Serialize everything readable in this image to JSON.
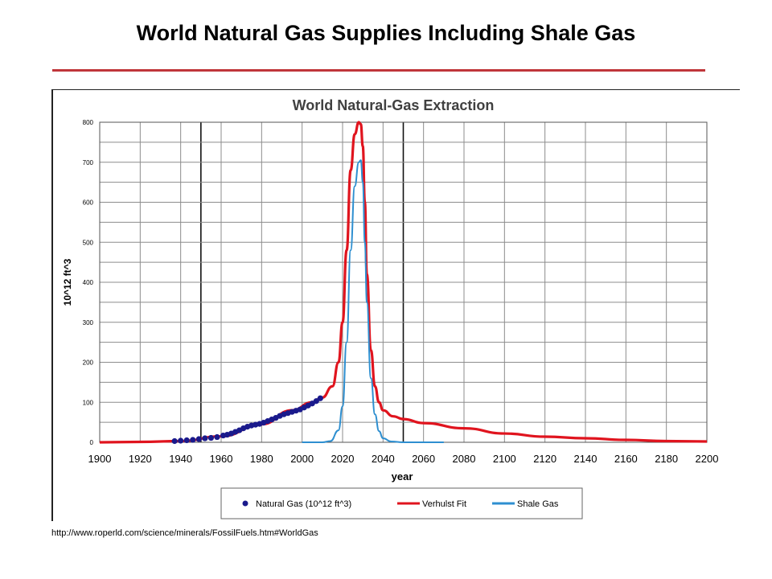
{
  "slide": {
    "title": "World Natural Gas Supplies Including Shale Gas",
    "source_url": "http://www.roperld.com/science/minerals/FossilFuels.htm#WorldGas"
  },
  "colors": {
    "title_rule": "#c0363a",
    "natural_gas": "#1a1a8c",
    "verhulst": "#e0141e",
    "shale": "#2e8fd0",
    "grid": "#8c8c8c",
    "grid_major": "#111111"
  },
  "chart_data": {
    "type": "line",
    "title": "World Natural-Gas Extraction",
    "xlabel": "year",
    "ylabel": "10^12 ft^3",
    "xlim": [
      1900,
      2200
    ],
    "ylim": [
      0,
      800
    ],
    "x_ticks": [
      "1900",
      "1920",
      "1940",
      "1960",
      "1980",
      "2000",
      "2020",
      "2040",
      "2060",
      "2080",
      "2100",
      "2120",
      "2140",
      "2160",
      "2180",
      "2200"
    ],
    "y_ticks": [
      "0",
      "100",
      "200",
      "300",
      "400",
      "500",
      "600",
      "700",
      "800"
    ],
    "grid": true,
    "legend_position": "bottom",
    "legend": [
      "Natural Gas (10^12 ft^3)",
      "Verhulst Fit",
      "Shale Gas"
    ],
    "series": [
      {
        "name": "Natural Gas (10^12 ft^3)",
        "kind": "scatter",
        "color": "#1a1a8c",
        "x": [
          1937,
          1940,
          1943,
          1946,
          1949,
          1952,
          1955,
          1958,
          1961,
          1963,
          1965,
          1967,
          1969,
          1971,
          1973,
          1975,
          1977,
          1979,
          1981,
          1983,
          1985,
          1987,
          1989,
          1991,
          1993,
          1995,
          1997,
          1999,
          2001,
          2003,
          2005,
          2007,
          2009
        ],
        "y": [
          3,
          4,
          5,
          6,
          8,
          10,
          11,
          13,
          17,
          19,
          22,
          26,
          30,
          35,
          39,
          42,
          44,
          46,
          49,
          53,
          57,
          61,
          66,
          70,
          73,
          76,
          79,
          82,
          87,
          92,
          97,
          103,
          110
        ]
      },
      {
        "name": "Verhulst Fit",
        "kind": "line",
        "color": "#e0141e",
        "x": [
          1900,
          1920,
          1940,
          1960,
          1980,
          1995,
          2005,
          2010,
          2015,
          2018,
          2020,
          2022,
          2024,
          2026,
          2028,
          2029,
          2030,
          2031,
          2032,
          2034,
          2036,
          2038,
          2040,
          2045,
          2050,
          2060,
          2080,
          2100,
          2120,
          2140,
          2160,
          2180,
          2200
        ],
        "y": [
          0,
          1,
          3,
          15,
          45,
          80,
          100,
          112,
          140,
          200,
          300,
          480,
          680,
          770,
          800,
          795,
          740,
          600,
          420,
          230,
          140,
          100,
          80,
          65,
          58,
          48,
          35,
          22,
          14,
          10,
          6,
          3,
          2
        ]
      },
      {
        "name": "Shale Gas",
        "kind": "line",
        "color": "#2e8fd0",
        "x": [
          2000,
          2010,
          2014,
          2018,
          2020,
          2022,
          2024,
          2026,
          2028,
          2029,
          2030,
          2031,
          2032,
          2034,
          2036,
          2038,
          2040,
          2044,
          2050,
          2070
        ],
        "y": [
          0,
          0,
          3,
          30,
          90,
          250,
          480,
          640,
          700,
          705,
          650,
          500,
          350,
          160,
          70,
          28,
          10,
          2,
          0,
          0
        ]
      }
    ]
  }
}
